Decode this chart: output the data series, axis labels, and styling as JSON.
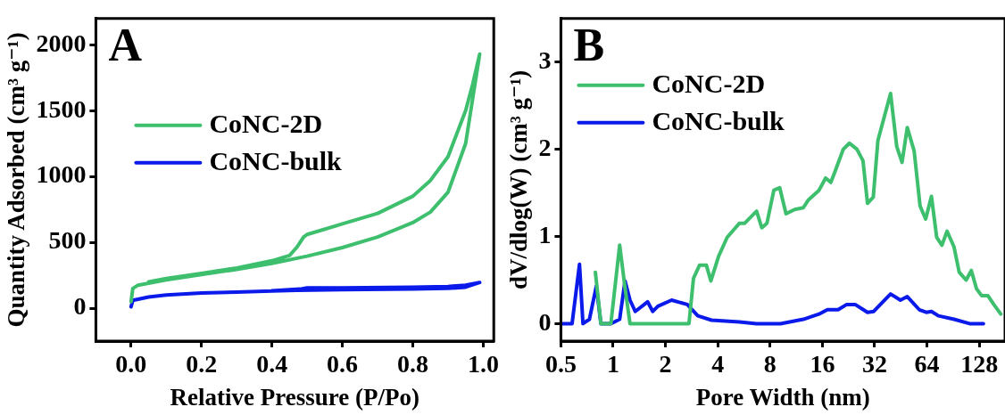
{
  "chart_data": [
    {
      "type": "line",
      "xlabel": "Relative Pressure (P/Po)",
      "ylabel": "Quantity Adsorbed (cm³ g⁻¹)",
      "annotations": [
        "A"
      ],
      "xlim": [
        -0.1,
        1.03
      ],
      "xticks": [
        {
          "value": 0,
          "label": "0.0"
        },
        0.2,
        0.4,
        0.6,
        0.8,
        {
          "value": 1,
          "label": "1.0"
        }
      ],
      "ylim": [
        -250,
        2200
      ],
      "yticks": [
        0,
        500,
        1000,
        1500,
        2000
      ],
      "grid": false,
      "legend": "top left",
      "marker": "none",
      "line_style": "solid",
      "series": [
        {
          "name": "CoNC-2D",
          "color": "#3dbf6e",
          "x": [
            0,
            0.005,
            0.02,
            0.05,
            0.1,
            0.2,
            0.3,
            0.4,
            0.5,
            0.6,
            0.7,
            0.8,
            0.85,
            0.9,
            0.95,
            0.99,
            0.97,
            0.95,
            0.9,
            0.85,
            0.8,
            0.7,
            0.6,
            0.5,
            0.49,
            0.47,
            0.45,
            0.4,
            0.3,
            0.2,
            0.1,
            0.05
          ],
          "values": [
            50,
            150,
            175,
            190,
            215,
            255,
            295,
            340,
            395,
            460,
            540,
            650,
            730,
            880,
            1250,
            1930,
            1700,
            1500,
            1150,
            970,
            850,
            720,
            640,
            560,
            540,
            460,
            400,
            360,
            305,
            265,
            225,
            200
          ]
        },
        {
          "name": "CoNC-bulk",
          "color": "#0a1aeb",
          "x": [
            0,
            0.005,
            0.05,
            0.1,
            0.2,
            0.3,
            0.4,
            0.47,
            0.6,
            0.8,
            0.9,
            0.95,
            0.99,
            0.95,
            0.9,
            0.8,
            0.6,
            0.5,
            0.48,
            0.4
          ],
          "values": [
            10,
            60,
            85,
            100,
            115,
            122,
            130,
            135,
            140,
            145,
            150,
            160,
            195,
            175,
            165,
            160,
            155,
            155,
            145,
            132
          ]
        }
      ]
    },
    {
      "type": "line",
      "xlabel": "Pore Width (nm)",
      "ylabel": "dV/dlog(W) (cm³ g⁻¹)",
      "annotations": [
        "B"
      ],
      "log": "x",
      "xlim": [
        0.5,
        180
      ],
      "xticks": [
        0.5,
        1,
        2,
        4,
        8,
        16,
        32,
        64,
        128
      ],
      "ylim": [
        -0.2,
        3.5
      ],
      "yticks": [
        0,
        1,
        2,
        3
      ],
      "grid": false,
      "legend": "top left",
      "marker": "none",
      "line_style": "solid",
      "series": [
        {
          "name": "CoNC-2D",
          "color": "#3dbf6e",
          "x": [
            0.79,
            0.85,
            0.97,
            1.09,
            1.17,
            1.25,
            2.73,
            2.9,
            3.14,
            3.44,
            3.65,
            4.04,
            4.53,
            5.32,
            5.7,
            6.69,
            7.17,
            7.67,
            8.41,
            9.09,
            9.88,
            11.08,
            12.43,
            13.3,
            15.3,
            16.7,
            17.9,
            19.2,
            21.1,
            22.9,
            25.3,
            27.4,
            29.1,
            31.4,
            33.4,
            39.5,
            42.9,
            46.0,
            49.3,
            54.0,
            58.4,
            62.9,
            67.9,
            72.8,
            78.0,
            83.5,
            91.6,
            98.1,
            107.5,
            115.2,
            123.4,
            132.2,
            143.6,
            155.2,
            170.2
          ],
          "values": [
            0.59,
            0,
            0,
            0.9,
            0.41,
            0,
            0,
            0.52,
            0.67,
            0.67,
            0.49,
            0.77,
            0.99,
            1.15,
            1.15,
            1.29,
            1.1,
            1.15,
            1.53,
            1.56,
            1.26,
            1.31,
            1.33,
            1.42,
            1.53,
            1.67,
            1.62,
            1.78,
            2.0,
            2.07,
            2.0,
            1.87,
            1.38,
            1.45,
            2.1,
            2.64,
            2.03,
            1.85,
            2.25,
            1.98,
            1.35,
            1.2,
            1.46,
            0.99,
            0.9,
            1.06,
            0.88,
            0.59,
            0.5,
            0.61,
            0.4,
            0.32,
            0.32,
            0.22,
            0.11
          ]
        },
        {
          "name": "CoNC-bulk",
          "color": "#0a1aeb",
          "x": [
            0.5,
            0.58,
            0.64,
            0.67,
            0.73,
            0.8,
            0.85,
            0.97,
            1.09,
            1.17,
            1.25,
            1.34,
            1.58,
            1.69,
            1.81,
            2.17,
            2.67,
            3.07,
            3.68,
            5.32,
            6.69,
            9.2,
            12.43,
            15.3,
            17.1,
            19.7,
            22.1,
            24.7,
            29.1,
            31.6,
            34.9,
            39.5,
            45.0,
            49.3,
            57.8,
            63.4,
            67.9,
            74.5,
            91.6,
            112.6,
            135.2
          ],
          "values": [
            0,
            0,
            0.68,
            0,
            0.05,
            0.43,
            0,
            0,
            0.05,
            0.49,
            0.27,
            0.14,
            0.25,
            0.14,
            0.2,
            0.27,
            0.22,
            0.09,
            0.04,
            0.02,
            0,
            0,
            0.05,
            0.11,
            0.16,
            0.16,
            0.22,
            0.22,
            0.13,
            0.14,
            0.23,
            0.34,
            0.27,
            0.31,
            0.16,
            0.13,
            0.14,
            0.09,
            0.05,
            0,
            0
          ]
        }
      ]
    }
  ]
}
